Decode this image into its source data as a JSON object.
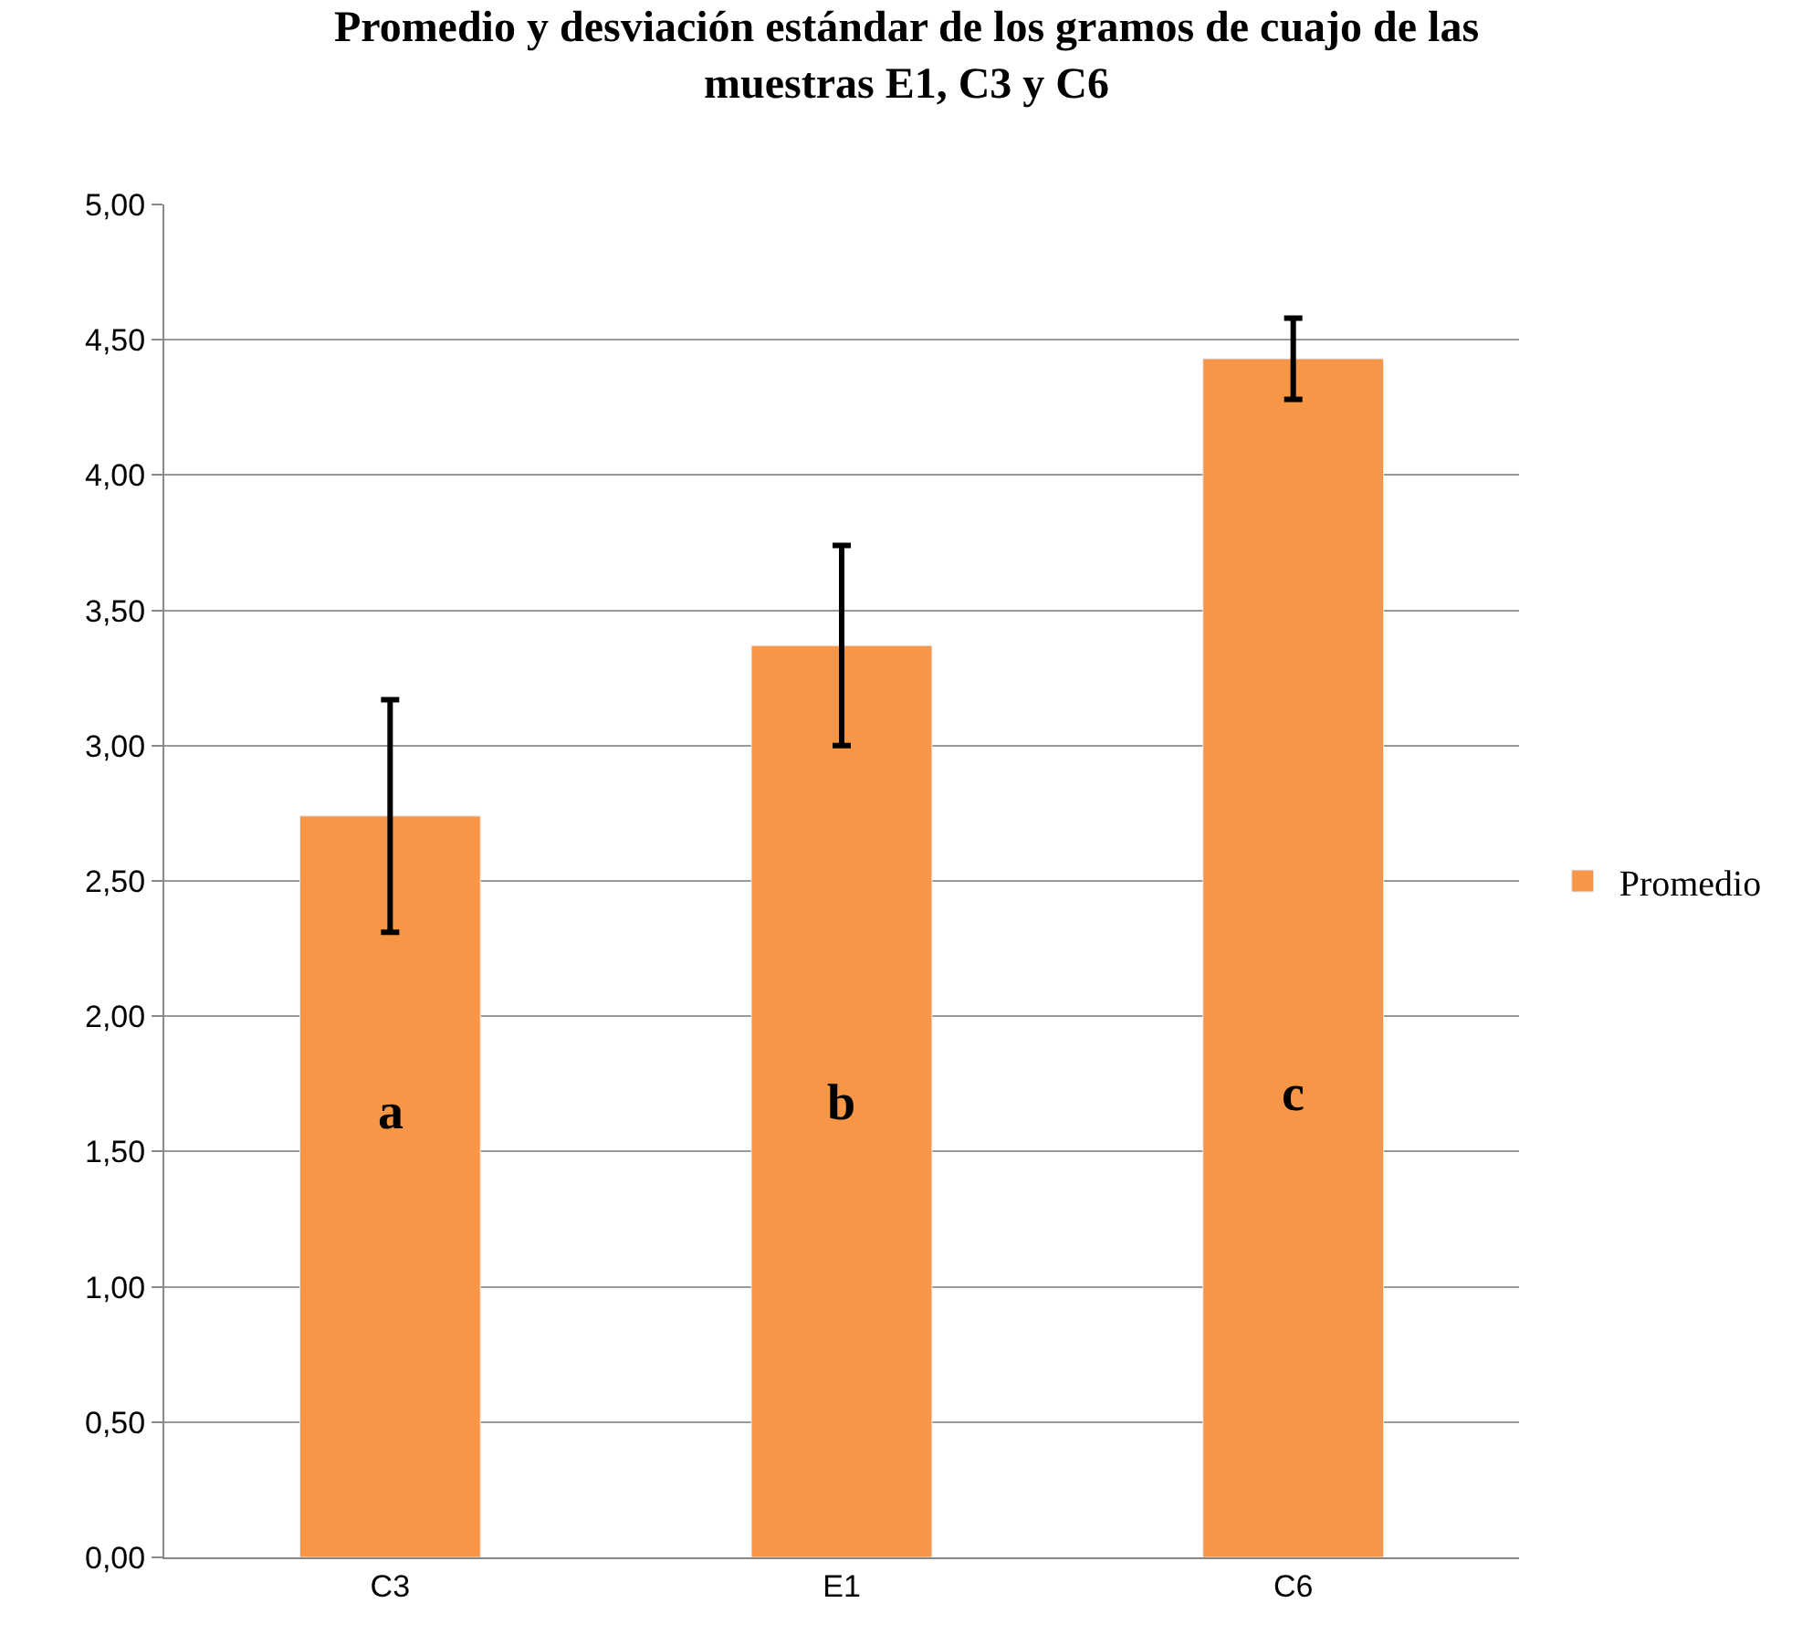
{
  "chart_data": {
    "type": "bar",
    "title": "Promedio y desviación estándar de los gramos de cuajo de las muestras E1, C3 y C6",
    "categories": [
      "C3",
      "E1",
      "C6"
    ],
    "series": [
      {
        "name": "Promedio",
        "color": "#f79646",
        "values": [
          2.74,
          3.37,
          4.43
        ],
        "errors": [
          0.43,
          0.37,
          0.15
        ]
      }
    ],
    "ylim": [
      0,
      5
    ],
    "yticks": [
      {
        "value": 0,
        "label": "0,00"
      },
      {
        "value": 0.5,
        "label": "0,50"
      },
      {
        "value": 1,
        "label": "1,00"
      },
      {
        "value": 1.5,
        "label": "1,50"
      },
      {
        "value": 2,
        "label": "2,00"
      },
      {
        "value": 2.5,
        "label": "2,50"
      },
      {
        "value": 3,
        "label": "3,00"
      },
      {
        "value": 3.5,
        "label": "3,50"
      },
      {
        "value": 4,
        "label": "4,00"
      },
      {
        "value": 4.5,
        "label": "4,50"
      },
      {
        "value": 5,
        "label": "5,00"
      }
    ],
    "annotations": [
      "a",
      "b",
      "c"
    ],
    "grid": "y",
    "legend": "right"
  }
}
